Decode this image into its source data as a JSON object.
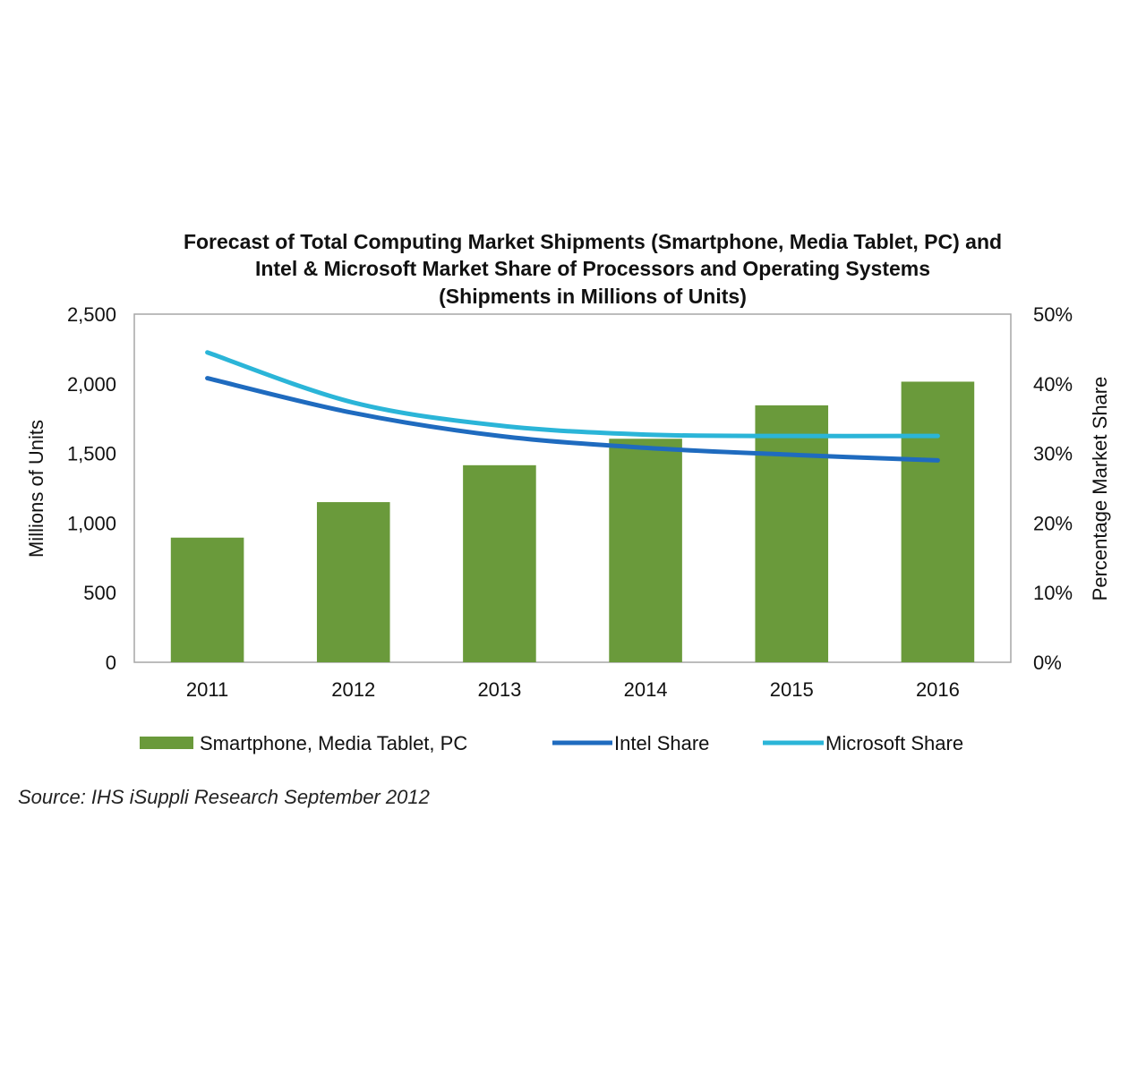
{
  "chart_data": {
    "type": "bar",
    "title_lines": [
      "Forecast of Total Computing Market Shipments (Smartphone, Media Tablet, PC) and",
      "Intel & Microsoft Market Share of Processors and Operating Systems",
      "(Shipments in Millions of Units)"
    ],
    "categories": [
      "2011",
      "2012",
      "2013",
      "2014",
      "2015",
      "2016"
    ],
    "bar_series": {
      "name": "Smartphone, Media Tablet, PC",
      "color": "#6a9a3b",
      "values": [
        895,
        1150,
        1415,
        1605,
        1845,
        2015
      ]
    },
    "line_series": [
      {
        "name": "Intel Share",
        "color": "#1f6bbf",
        "values": [
          40.8,
          35.8,
          32.5,
          30.8,
          29.8,
          29.0
        ]
      },
      {
        "name": "Microsoft Share",
        "color": "#2bb5d8",
        "values": [
          44.5,
          37.3,
          34.0,
          32.7,
          32.5,
          32.5
        ]
      }
    ],
    "y_left": {
      "label": "Millions of Units",
      "ylim": [
        0,
        2500
      ],
      "ticks": [
        "0",
        "500",
        "1,000",
        "1,500",
        "2,000",
        "2,500"
      ]
    },
    "y_right": {
      "label": "Percentage Market Share",
      "ylim": [
        0,
        50
      ],
      "ticks": [
        "0%",
        "10%",
        "20%",
        "30%",
        "40%",
        "50%"
      ]
    },
    "grid": false,
    "legend_position": "bottom",
    "source": "Source: IHS iSuppli Research September 2012"
  }
}
